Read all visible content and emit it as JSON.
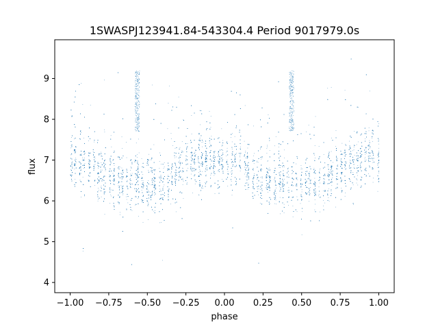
{
  "chart_data": {
    "type": "scatter",
    "title": "1SWASPJ123941.84-543304.4 Period 9017979.0s",
    "xlabel": "phase",
    "ylabel": "flux",
    "xlim": [
      -1.1,
      1.1
    ],
    "ylim": [
      3.75,
      9.95
    ],
    "xticks": [
      -1.0,
      -0.75,
      -0.5,
      -0.25,
      0.0,
      0.25,
      0.5,
      0.75,
      1.0
    ],
    "xtick_labels": [
      "−1.00",
      "−0.75",
      "−0.50",
      "−0.25",
      "0.00",
      "0.25",
      "0.50",
      "0.75",
      "1.00"
    ],
    "yticks": [
      4,
      5,
      6,
      7,
      8,
      9
    ],
    "ytick_labels": [
      "4",
      "5",
      "6",
      "7",
      "8",
      "9"
    ],
    "grid": false,
    "marker_color": "#1f77b4",
    "series": [
      {
        "phase_profile": [
          {
            "x": -1.0,
            "y": 7.0
          },
          {
            "x": -0.9,
            "y": 6.95
          },
          {
            "x": -0.8,
            "y": 6.6
          },
          {
            "x": -0.7,
            "y": 6.55
          },
          {
            "x": -0.6,
            "y": 6.45
          },
          {
            "x": -0.5,
            "y": 6.4
          },
          {
            "x": -0.4,
            "y": 6.35
          },
          {
            "x": -0.3,
            "y": 6.7
          },
          {
            "x": -0.2,
            "y": 6.95
          },
          {
            "x": -0.1,
            "y": 7.05
          },
          {
            "x": 0.0,
            "y": 7.0
          },
          {
            "x": 0.1,
            "y": 6.95
          },
          {
            "x": 0.2,
            "y": 6.6
          },
          {
            "x": 0.3,
            "y": 6.55
          },
          {
            "x": 0.4,
            "y": 6.45
          },
          {
            "x": 0.5,
            "y": 6.4
          },
          {
            "x": 0.6,
            "y": 6.35
          },
          {
            "x": 0.7,
            "y": 6.7
          },
          {
            "x": 0.8,
            "y": 6.95
          },
          {
            "x": 0.9,
            "y": 7.05
          },
          {
            "x": 1.0,
            "y": 7.0
          }
        ],
        "flares": [
          {
            "x": -0.565,
            "y_min": 7.7,
            "y_max": 9.2
          },
          {
            "x": 0.435,
            "y_min": 7.7,
            "y_max": 9.2
          }
        ],
        "scatter_sigma": 0.35,
        "points_per_unit_phase": 5200
      }
    ]
  }
}
